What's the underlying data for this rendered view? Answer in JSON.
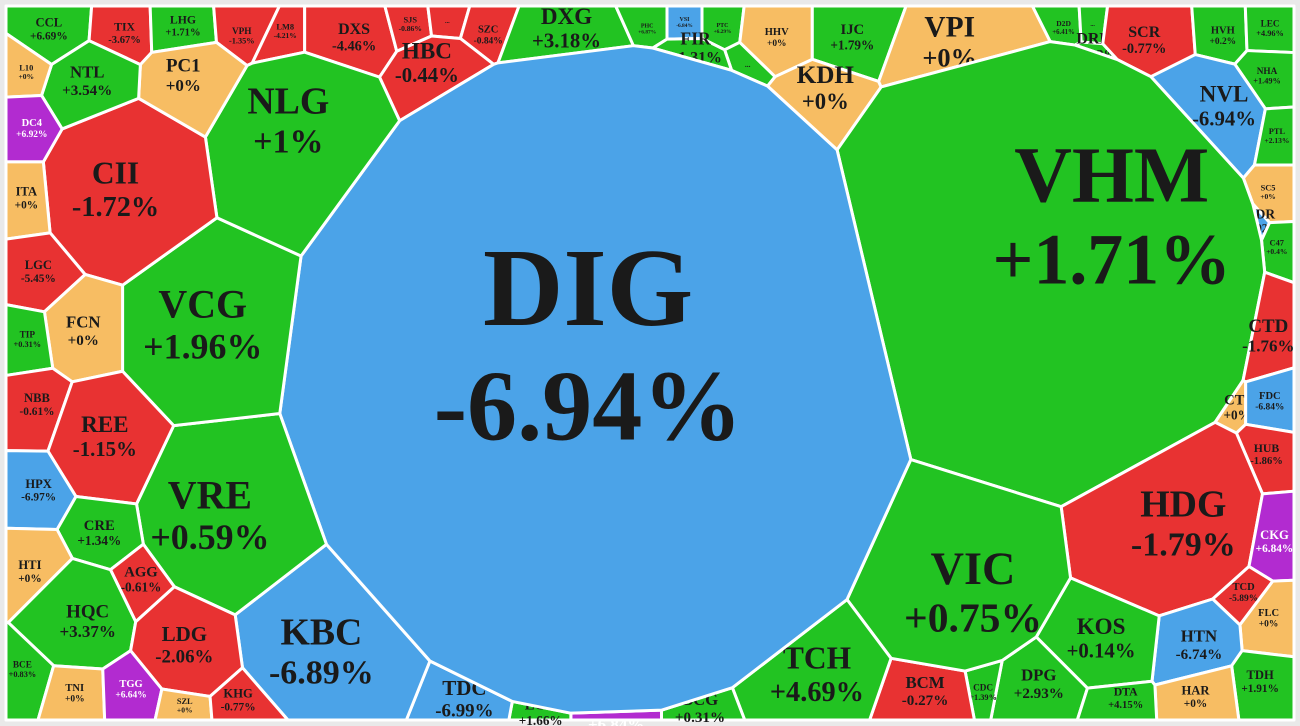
{
  "chart_data": {
    "type": "voronoi_treemap",
    "categories": [
      "CCL",
      "TIX",
      "LHG",
      "VPH",
      "LM8",
      "DXS",
      "SJS",
      "...",
      "SZC",
      "HBC",
      "DXG",
      "PHC",
      "VSI",
      "PTC",
      "...",
      "FIR",
      "HHV",
      "IJC",
      "KDH",
      "VPI",
      "D2D",
      "...",
      "DRH",
      "SCR",
      "HVH",
      "LEC",
      "NHA",
      "NVL",
      "PTL",
      "SC5",
      "PDR",
      "C47",
      "VHM",
      "CTD",
      "CTI",
      "FDC",
      "HUB",
      "HDG",
      "CKG",
      "TCD",
      "FLC",
      "HTN",
      "TDH",
      "HAR",
      "KOS",
      "DPG",
      "DTA",
      "CDC",
      "BCM",
      "VIC",
      "TCH",
      "BCG",
      "HDC",
      "LCG",
      "TDC",
      "KBC",
      "DIG",
      "VRE",
      "VCG",
      "NLG",
      "CII",
      "PC1",
      "NTL",
      "L10",
      "DC4",
      "ITA",
      "LGC",
      "FCN",
      "TIP",
      "NBB",
      "REE",
      "HPX",
      "CRE",
      "HTI",
      "AGG",
      "HQC",
      "LDG",
      "BCE",
      "TNI",
      "TGG",
      "SZL",
      "KHG"
    ],
    "values": [
      6.69,
      -3.67,
      1.71,
      -1.35,
      -4.21,
      -4.46,
      -0.86,
      null,
      -0.84,
      -0.44,
      3.18,
      6.87,
      -6.84,
      6.29,
      null,
      1.31,
      0,
      1.79,
      0,
      0,
      6.41,
      null,
      1.32,
      -0.77,
      0.2,
      4.96,
      1.49,
      -6.94,
      2.13,
      0,
      -6.92,
      0.4,
      1.71,
      -1.76,
      0,
      -6.84,
      -1.86,
      -1.79,
      6.84,
      -5.89,
      0,
      -6.74,
      1.91,
      0,
      0.14,
      2.93,
      4.15,
      1.39,
      -0.27,
      0.75,
      4.69,
      0.31,
      6.84,
      1.66,
      -6.99,
      -6.89,
      -6.94,
      0.59,
      1.96,
      1,
      -1.72,
      0,
      3.54,
      0,
      6.92,
      0,
      -5.45,
      0,
      0.31,
      -0.61,
      -1.15,
      -6.97,
      1.34,
      0,
      -0.61,
      3.37,
      -2.06,
      0.83,
      0,
      6.64,
      0,
      -0.77
    ],
    "value_labels": [
      "+6.69%",
      "-3.67%",
      "+1.71%",
      "-1.35%",
      "-4.21%",
      "-4.46%",
      "-0.86%",
      null,
      "-0.84%",
      "-0.44%",
      "+3.18%",
      "+6.87%",
      "-6.84%",
      "+6.29%",
      null,
      "+1.31%",
      "+0%",
      "+1.79%",
      "+0%",
      "+0%",
      "+6.41%",
      null,
      "+1.32%",
      "-0.77%",
      "+0.2%",
      "+4.96%",
      "+1.49%",
      "-6.94%",
      "+2.13%",
      "+0%",
      "-6.92%",
      "+0.4%",
      "+1.71%",
      "-1.76%",
      "+0%",
      "-6.84%",
      "-1.86%",
      "-1.79%",
      "+6.84%",
      "-5.89%",
      "+0%",
      "-6.74%",
      "+1.91%",
      "+0%",
      "+0.14%",
      "+2.93%",
      "+4.15%",
      "+1.39%",
      "-0.27%",
      "+0.75%",
      "+4.69%",
      "+0.31%",
      "+6.84%",
      "+1.66%",
      "-6.99%",
      "-6.89%",
      "-6.94%",
      "+0.59%",
      "+1.96%",
      "+1%",
      "-1.72%",
      "+0%",
      "+3.54%",
      "+0%",
      "+6.92%",
      "+0%",
      "-5.45%",
      "+0%",
      "+0.31%",
      "-0.61%",
      "-1.15%",
      "-6.97%",
      "+1.34%",
      "+0%",
      "-0.61%",
      "+3.37%",
      "-2.06%",
      "+0.83%",
      "+0%",
      "+6.64%",
      "+0%",
      "-0.77%"
    ],
    "colors": [
      "#22c322",
      "#e83232",
      "#22c322",
      "#e83232",
      "#e83232",
      "#e83232",
      "#e83232",
      "#e83232",
      "#e83232",
      "#e83232",
      "#22c322",
      "#22c322",
      "#4ba3e8",
      "#22c322",
      "#22c322",
      "#22c322",
      "#f7bd63",
      "#22c322",
      "#f7bd63",
      "#f7bd63",
      "#22c322",
      "#22c322",
      "#22c322",
      "#e83232",
      "#22c322",
      "#22c322",
      "#22c322",
      "#4ba3e8",
      "#22c322",
      "#f7bd63",
      "#4ba3e8",
      "#22c322",
      "#22c322",
      "#e83232",
      "#f7bd63",
      "#4ba3e8",
      "#e83232",
      "#e83232",
      "#b22bd0",
      "#e83232",
      "#f7bd63",
      "#4ba3e8",
      "#22c322",
      "#f7bd63",
      "#22c322",
      "#22c322",
      "#22c322",
      "#22c322",
      "#e83232",
      "#22c322",
      "#22c322",
      "#22c322",
      "#b22bd0",
      "#22c322",
      "#4ba3e8",
      "#4ba3e8",
      "#4ba3e8",
      "#22c322",
      "#22c322",
      "#22c322",
      "#e83232",
      "#f7bd63",
      "#22c322",
      "#f7bd63",
      "#b22bd0",
      "#f7bd63",
      "#e83232",
      "#f7bd63",
      "#22c322",
      "#e83232",
      "#e83232",
      "#4ba3e8",
      "#22c322",
      "#f7bd63",
      "#e83232",
      "#22c322",
      "#e83232",
      "#22c322",
      "#f7bd63",
      "#b22bd0",
      "#f7bd63",
      "#e83232"
    ]
  }
}
